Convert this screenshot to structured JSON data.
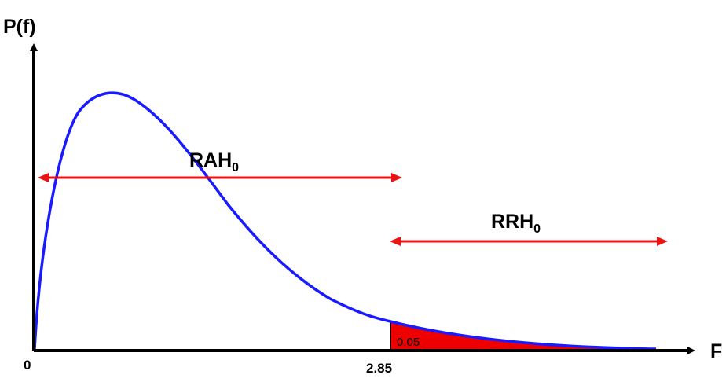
{
  "labels": {
    "y_axis": "P(f)",
    "x_axis": "F",
    "origin": "0",
    "critical_value": "2.85",
    "tail_area": "0.05",
    "accept_region_main": "RAH",
    "accept_region_sub": "0",
    "reject_region_main": "RRH",
    "reject_region_sub": "0"
  },
  "colors": {
    "curve": "#1a1aff",
    "rejection_fill": "#ee0000",
    "region_arrows": "#ee1111",
    "axes": "#000000"
  }
}
